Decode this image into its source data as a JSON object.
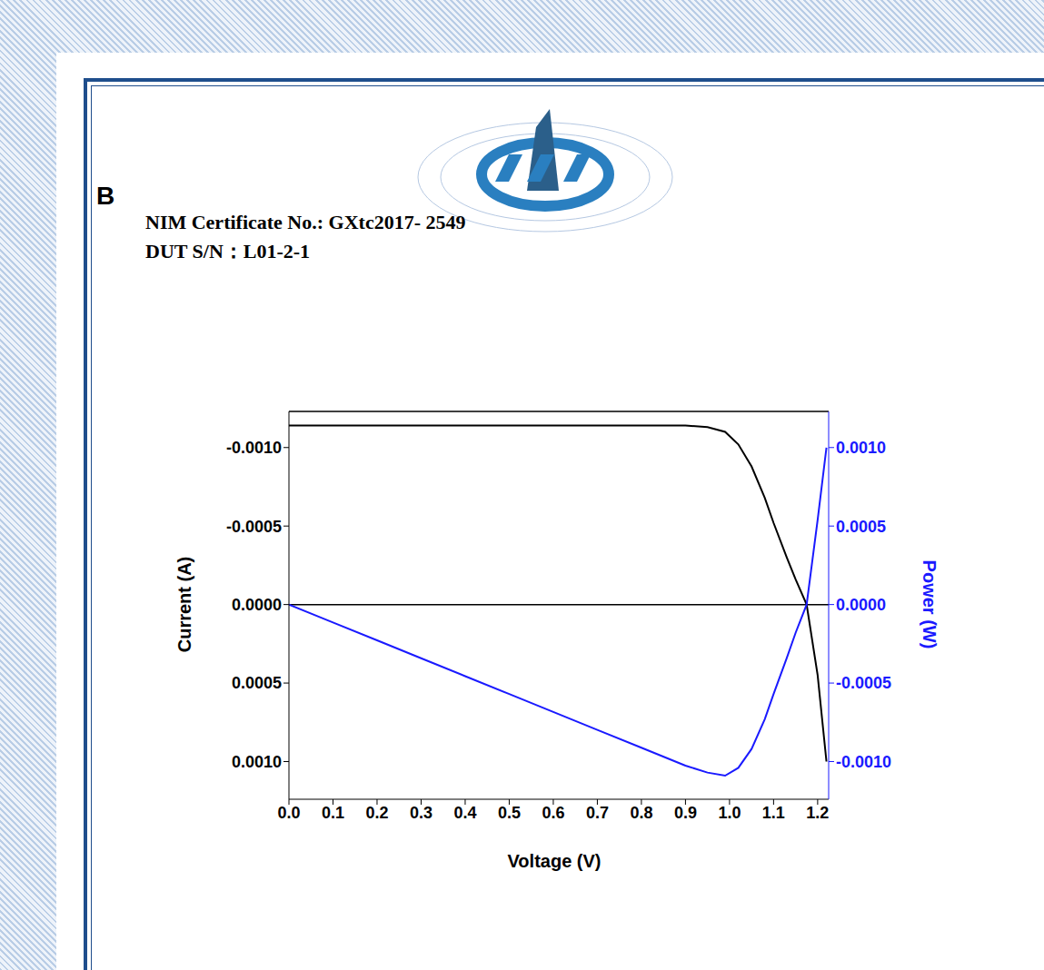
{
  "document": {
    "panel_label": "B",
    "lines": [
      "NIM Certificate No.: GXtc2017- 2549",
      "DUT S/N：L01-2-1"
    ]
  },
  "chart_data": {
    "type": "line",
    "xlabel": "Voltage (V)",
    "ylabel": "Current (A)",
    "y2label": "Power (W)",
    "grid": false,
    "x": [
      0,
      0.1,
      0.2,
      0.3,
      0.4,
      0.5,
      0.6,
      0.7,
      0.8,
      0.9,
      0.95,
      0.99,
      1.02,
      1.05,
      1.08,
      1.1,
      1.13,
      1.15,
      1.175,
      1.2,
      1.22
    ],
    "xlim": [
      0,
      1.225
    ],
    "xticks": [
      {
        "value": 0,
        "label": "0.0"
      },
      0.1,
      0.2,
      0.3,
      0.4,
      0.5,
      0.6,
      0.7,
      0.8,
      0.9,
      {
        "value": 1,
        "label": "1.0"
      },
      1.1,
      1.2
    ],
    "ylim": [
      0.00124,
      -0.00123
    ],
    "yticks": [
      {
        "value": -0.001,
        "label": "-0.0010"
      },
      -0.0005,
      {
        "value": 0,
        "label": "0.0000"
      },
      0.0005,
      {
        "value": 0.001,
        "label": "0.0010"
      }
    ],
    "y2lim": [
      -0.00124,
      0.00123
    ],
    "y2ticks": [
      {
        "value": 0.001,
        "label": "0.0010"
      },
      0.0005,
      {
        "value": 0,
        "label": "0.0000"
      },
      -0.0005,
      {
        "value": -0.001,
        "label": "-0.0010"
      }
    ],
    "series": [
      {
        "color": "#000000",
        "line_style": "solid",
        "values": [
          -0.00114,
          -0.00114,
          -0.00114,
          -0.00114,
          -0.00114,
          -0.00114,
          -0.00114,
          -0.00114,
          -0.00114,
          -0.00114,
          -0.00113,
          -0.0011,
          -0.00102,
          -0.00088,
          -0.00068,
          -0.00052,
          -0.0003,
          -0.00016,
          0,
          0.00045,
          0.001
        ]
      },
      {
        "color": "#1a1aff",
        "line_style": "solid",
        "axis": "y2",
        "values": [
          0,
          -0.000114,
          -0.000228,
          -0.000342,
          -0.000456,
          -0.00057,
          -0.000684,
          -0.000798,
          -0.000912,
          -0.001026,
          -0.00107,
          -0.00109,
          -0.00104,
          -0.00092,
          -0.00073,
          -0.00057,
          -0.00034,
          -0.00018,
          0,
          0.00054,
          0.001
        ]
      }
    ]
  }
}
